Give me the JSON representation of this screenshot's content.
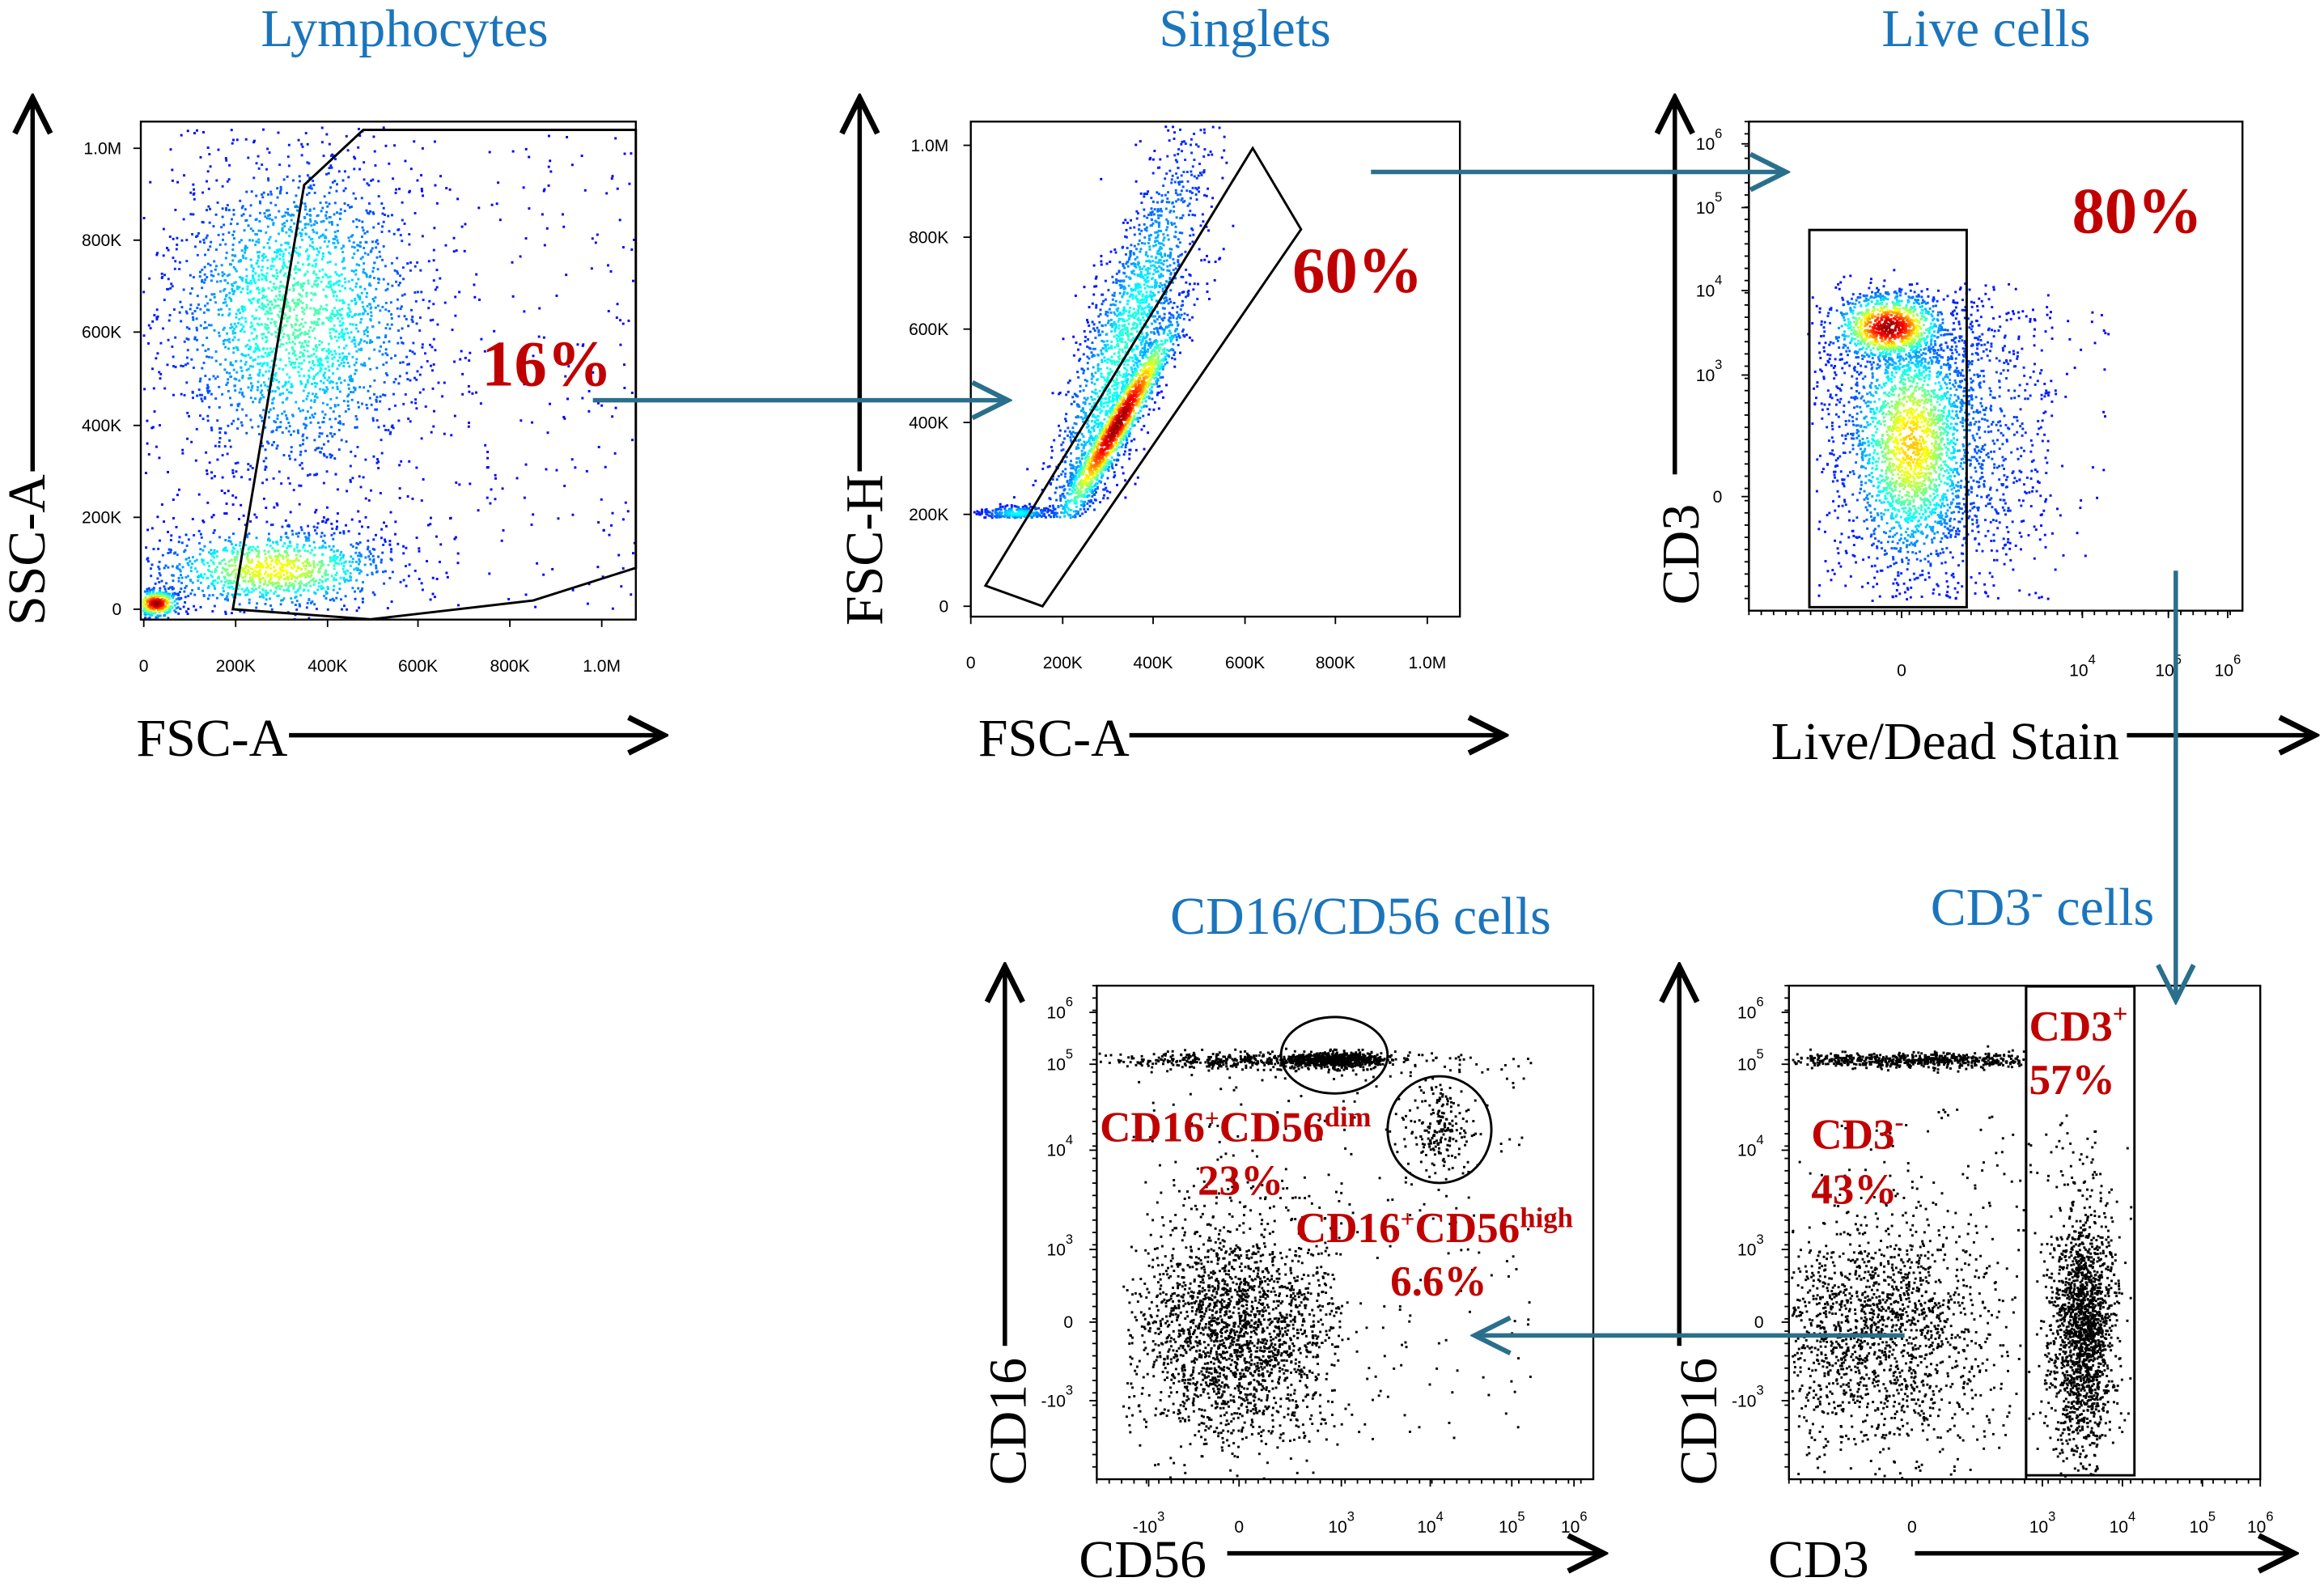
{
  "colors": {
    "title": "#1b75bc",
    "percent": "#c00000",
    "flow_arrow": "#2a6f8c",
    "dots": "#000000"
  },
  "chart_data": [
    {
      "id": "p1",
      "type": "scatter",
      "title": "Lymphocytes",
      "xlabel": "FSC-A",
      "ylabel": "SSC-A",
      "color_mode": "density",
      "xticks": [
        {
          "label": "0",
          "value": 0
        },
        {
          "label": "200K",
          "value": 200
        },
        {
          "label": "400K",
          "value": 400
        },
        {
          "label": "600K",
          "value": 600
        },
        {
          "label": "800K",
          "value": 800
        },
        {
          "label": "1.0M",
          "value": 1000
        }
      ],
      "yticks": [
        {
          "label": "0",
          "value": 0
        },
        {
          "label": "200K",
          "value": 200
        },
        {
          "label": "400K",
          "value": 400
        },
        {
          "label": "600K",
          "value": 600
        },
        {
          "label": "800K",
          "value": 800
        },
        {
          "label": "1.0M",
          "value": 1000
        }
      ],
      "units": "thousands",
      "populations": [
        {
          "center": [
            330,
            640
          ],
          "sd": [
            140,
            170
          ],
          "n": 2200,
          "density": 0.4
        },
        {
          "center": [
            280,
            90
          ],
          "sd": [
            130,
            45
          ],
          "n": 1000,
          "density": 0.6
        },
        {
          "center": [
            25,
            15
          ],
          "sd": [
            25,
            15
          ],
          "n": 400,
          "density": 1.0
        },
        {
          "uniform": [
            0,
            1070,
            0,
            1050
          ],
          "n": 500,
          "density": 0
        }
      ],
      "gates": [
        {
          "type": "polygon",
          "points": [
            [
              194,
              0
            ],
            [
              349,
              920
            ],
            [
              479,
              1040
            ],
            [
              1075,
              1040
            ],
            [
              1075,
              90
            ],
            [
              851,
              19
            ],
            [
              495,
              -22
            ]
          ]
        }
      ],
      "annotation": {
        "value": "16%"
      }
    },
    {
      "id": "p2",
      "type": "scatter",
      "title": "Singlets",
      "xlabel": "FSC-A",
      "ylabel": "FSC-H",
      "color_mode": "density",
      "xticks": [
        {
          "label": "0",
          "value": 0
        },
        {
          "label": "200K",
          "value": 200
        },
        {
          "label": "400K",
          "value": 400
        },
        {
          "label": "600K",
          "value": 600
        },
        {
          "label": "800K",
          "value": 800
        },
        {
          "label": "1.0M",
          "value": 1000
        }
      ],
      "yticks": [
        {
          "label": "0",
          "value": 0
        },
        {
          "label": "200K",
          "value": 200
        },
        {
          "label": "400K",
          "value": 400
        },
        {
          "label": "600K",
          "value": 600
        },
        {
          "label": "800K",
          "value": 800
        },
        {
          "label": "1.0M",
          "value": 1000
        }
      ],
      "units": "thousands",
      "populations": [
        {
          "center": [
            320,
            400
          ],
          "sd": [
            70,
            35
          ],
          "slope": 1.6,
          "n": 1500,
          "density": 1.0,
          "clip": [
            0,
            1080,
            195,
            1060
          ]
        },
        {
          "center": [
            330,
            560
          ],
          "sd": [
            90,
            120
          ],
          "slope": 2.2,
          "n": 1800,
          "density": 0.35,
          "clip": [
            0,
            1080,
            195,
            1060
          ]
        },
        {
          "center": [
            100,
            205
          ],
          "sd": [
            40,
            8
          ],
          "n": 300,
          "density": 0.3,
          "clip": [
            0,
            1080,
            195,
            1060
          ]
        }
      ],
      "gates": [
        {
          "type": "polygon",
          "points": [
            [
              32,
              45
            ],
            [
              156,
              0
            ],
            [
              724,
              817
            ],
            [
              617,
              994
            ]
          ]
        }
      ],
      "annotation": {
        "value": "60%"
      }
    },
    {
      "id": "p3",
      "type": "scatter",
      "title": "Live cells",
      "xlabel": "Live/Dead Stain",
      "ylabel": "CD3",
      "color_mode": "density",
      "xticks": [
        {
          "base": "0",
          "exp": "",
          "value": 0
        },
        {
          "base": "10",
          "exp": "4",
          "value": 2
        },
        {
          "base": "10",
          "exp": "5",
          "value": 3
        },
        {
          "base": "10",
          "exp": "6",
          "value": 4
        }
      ],
      "yticks": [
        {
          "base": "0",
          "exp": "",
          "value": 0
        },
        {
          "base": "10",
          "exp": "3",
          "value": 1
        },
        {
          "base": "10",
          "exp": "4",
          "value": 2
        },
        {
          "base": "10",
          "exp": "5",
          "value": 3
        },
        {
          "base": "10",
          "exp": "6",
          "value": 4
        }
      ],
      "units": "biexponential display units (0 = 0, 1 = 10^3, 2 = 10^4, ...)",
      "populations": [
        {
          "center": [
            -0.15,
            1.58
          ],
          "sd": [
            0.3,
            0.2
          ],
          "n": 900,
          "density": 1.0
        },
        {
          "center": [
            0.1,
            0.45
          ],
          "sd": [
            0.35,
            0.5
          ],
          "n": 1500,
          "density": 0.65,
          "clip": [
            -1,
            1.6,
            -0.8,
            2.1
          ]
        },
        {
          "center": [
            0.3,
            0.6
          ],
          "sd": [
            0.75,
            0.8
          ],
          "n": 1700,
          "density": 0.15,
          "clip": [
            -1,
            1.7,
            -0.85,
            2.1
          ]
        },
        {
          "uniform": [
            0.5,
            2.3,
            -0.5,
            2.0
          ],
          "n": 60,
          "density": 0
        }
      ],
      "gates": [
        {
          "type": "rect",
          "bounds": [
            -1.02,
            0.72,
            -0.91,
            2.73
          ]
        }
      ],
      "annotation": {
        "value": "80%"
      }
    },
    {
      "id": "p4",
      "type": "scatter",
      "title": "CD16/CD56 cells",
      "xlabel": "CD56",
      "ylabel": "CD16",
      "color_mode": "black",
      "xticks": [
        {
          "base": "-10",
          "exp": "3",
          "value": -1
        },
        {
          "base": "0",
          "exp": "",
          "value": 0
        },
        {
          "base": "10",
          "exp": "3",
          "value": 1
        },
        {
          "base": "10",
          "exp": "4",
          "value": 2
        },
        {
          "base": "10",
          "exp": "5",
          "value": 3
        },
        {
          "base": "10",
          "exp": "6",
          "value": 4
        }
      ],
      "yticks": [
        {
          "base": "-10",
          "exp": "3",
          "value": -1
        },
        {
          "base": "0",
          "exp": "",
          "value": 0
        },
        {
          "base": "10",
          "exp": "3",
          "value": 1
        },
        {
          "base": "10",
          "exp": "4",
          "value": 2
        },
        {
          "base": "10",
          "exp": "5",
          "value": 3
        },
        {
          "base": "10",
          "exp": "6",
          "value": 4
        }
      ],
      "units": "biexponential display units",
      "populations": [
        {
          "center": [
            -0.05,
            -0.1
          ],
          "sd": [
            0.55,
            0.75
          ],
          "n": 2200,
          "clip": [
            -1.3,
            1.0,
            -2,
            2
          ]
        },
        {
          "center": [
            0.2,
            3.1
          ],
          "sd": [
            0.9,
            0.08
          ],
          "n": 500
        },
        {
          "center": [
            0.95,
            3.1
          ],
          "sd": [
            0.25,
            0.07
          ],
          "n": 600
        },
        {
          "center": [
            2.1,
            2.3
          ],
          "sd": [
            0.2,
            0.25
          ],
          "n": 200
        },
        {
          "uniform": [
            -1.2,
            3.3,
            -1.5,
            3.2
          ],
          "n": 300
        }
      ],
      "gates": [
        {
          "type": "ellipse",
          "bounds": [
            0.41,
            1.52,
            2.66,
            3.91
          ]
        },
        {
          "type": "ellipse",
          "bounds": [
            1.52,
            2.75,
            1.67,
            2.86
          ]
        }
      ],
      "annotations": [
        {
          "a": "CD16",
          "sup_a": "+",
          "b": "CD56",
          "sup_b": "dim",
          "value": "23%"
        },
        {
          "a": "CD16",
          "sup_a": "+",
          "b": "CD56",
          "sup_b": "high",
          "value": "6.6%"
        }
      ]
    },
    {
      "id": "p5",
      "type": "scatter",
      "title": "CD3",
      "title_sup": "-",
      "title_rest": " cells",
      "xlabel": "CD3",
      "ylabel": "CD16",
      "color_mode": "black",
      "xticks": [
        {
          "base": "0",
          "exp": "",
          "value": 0
        },
        {
          "base": "10",
          "exp": "3",
          "value": 1
        },
        {
          "base": "10",
          "exp": "4",
          "value": 2
        },
        {
          "base": "10",
          "exp": "5",
          "value": 3
        },
        {
          "base": "10",
          "exp": "6",
          "value": 4
        }
      ],
      "yticks": [
        {
          "base": "-10",
          "exp": "3",
          "value": -1
        },
        {
          "base": "0",
          "exp": "",
          "value": 0
        },
        {
          "base": "10",
          "exp": "3",
          "value": 1
        },
        {
          "base": "10",
          "exp": "4",
          "value": 2
        },
        {
          "base": "10",
          "exp": "5",
          "value": 3
        },
        {
          "base": "10",
          "exp": "6",
          "value": 4
        }
      ],
      "units": "biexponential display units",
      "populations": [
        {
          "center": [
            -0.25,
            -0.1
          ],
          "sd": [
            0.45,
            0.75
          ],
          "n": 1600,
          "clip": [
            -1,
            0.85,
            -2,
            2.5
          ]
        },
        {
          "center": [
            0,
            3.1
          ],
          "sd": [
            0.6,
            0.07
          ],
          "n": 700,
          "clip": [
            -1,
            0.85,
            2,
            4
          ]
        },
        {
          "center": [
            1.5,
            -0.1
          ],
          "sd": [
            0.2,
            0.8
          ],
          "n": 1800,
          "clip": [
            0.95,
            2.1,
            -2,
            2.6
          ]
        },
        {
          "uniform": [
            -0.8,
            1.7,
            -1.5,
            2.5
          ],
          "n": 250
        }
      ],
      "gates": [
        {
          "type": "vline",
          "x": 0.875
        },
        {
          "type": "rect",
          "bounds": [
            0.875,
            2.15,
            -1.95,
            4.5
          ]
        }
      ],
      "annotations": [
        {
          "a": "CD3",
          "sup_a": "+",
          "value": "57%"
        },
        {
          "a": "CD3",
          "sup_a": "-",
          "value": "43%"
        }
      ]
    }
  ]
}
